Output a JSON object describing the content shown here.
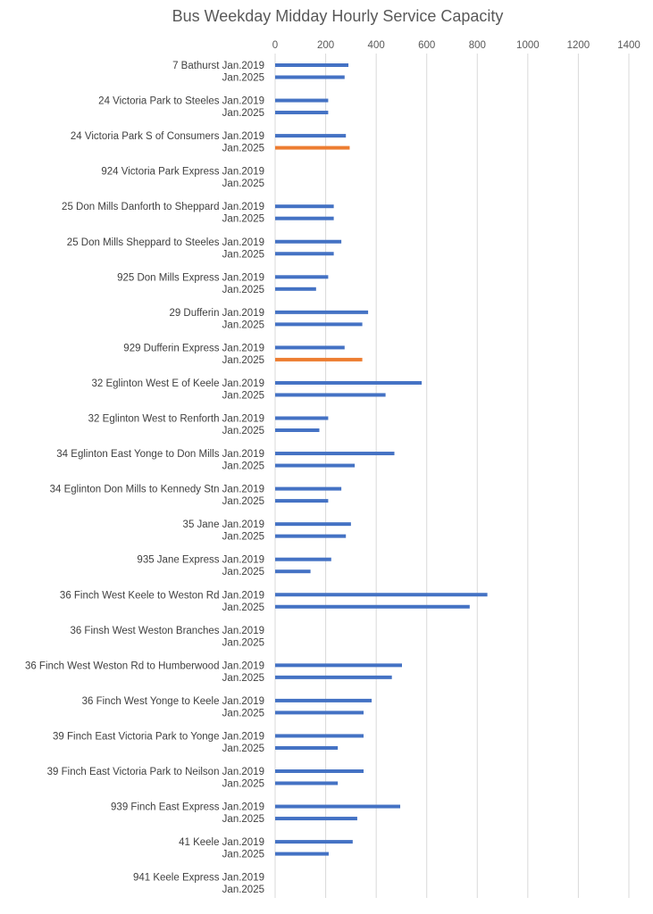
{
  "chart_data": {
    "type": "bar",
    "orientation": "horizontal",
    "title": "Bus Weekday Midday Hourly Service Capacity",
    "xlabel": "",
    "ylabel": "",
    "xlim": [
      0,
      1400
    ],
    "xticks": [
      0,
      200,
      400,
      600,
      800,
      1000,
      1200,
      1400
    ],
    "grid": "vertical",
    "legend": "none",
    "colors": {
      "default": "#4472C4",
      "highlight": "#ED7D31"
    },
    "routes": [
      {
        "name": "7 Bathurst",
        "bars": [
          {
            "label": "Jan.2019",
            "value": 290
          },
          {
            "label": "Jan.2025",
            "value": 275
          }
        ]
      },
      {
        "name": "24 Victoria Park to Steeles",
        "bars": [
          {
            "label": "Jan.2019",
            "value": 210
          },
          {
            "label": "Jan.2025",
            "value": 210
          }
        ]
      },
      {
        "name": "24 Victoria Park S of Consumers",
        "bars": [
          {
            "label": "Jan.2019",
            "value": 280
          },
          {
            "label": "Jan.2025",
            "value": 295,
            "color": "#ED7D31"
          }
        ]
      },
      {
        "name": "924 Victoria Park Express",
        "bars": [
          {
            "label": "Jan.2019",
            "value": 0
          },
          {
            "label": "Jan.2025",
            "value": 0
          }
        ]
      },
      {
        "name": "25 Don Mills Danforth to Sheppard",
        "bars": [
          {
            "label": "Jan.2019",
            "value": 232
          },
          {
            "label": "Jan.2025",
            "value": 232
          }
        ]
      },
      {
        "name": "25 Don Mills Sheppard to Steeles",
        "bars": [
          {
            "label": "Jan.2019",
            "value": 262
          },
          {
            "label": "Jan.2025",
            "value": 232
          }
        ]
      },
      {
        "name": "925 Don Mills Express",
        "bars": [
          {
            "label": "Jan.2019",
            "value": 210
          },
          {
            "label": "Jan.2025",
            "value": 162
          }
        ]
      },
      {
        "name": "29 Dufferin",
        "bars": [
          {
            "label": "Jan.2019",
            "value": 368
          },
          {
            "label": "Jan.2025",
            "value": 345
          }
        ]
      },
      {
        "name": "929 Dufferin Express",
        "bars": [
          {
            "label": "Jan.2019",
            "value": 275
          },
          {
            "label": "Jan.2025",
            "value": 345,
            "color": "#ED7D31"
          }
        ]
      },
      {
        "name": "32 Eglinton West E of Keele",
        "bars": [
          {
            "label": "Jan.2019",
            "value": 580
          },
          {
            "label": "Jan.2025",
            "value": 437
          }
        ]
      },
      {
        "name": "32 Eglinton West to Renforth",
        "bars": [
          {
            "label": "Jan.2019",
            "value": 210
          },
          {
            "label": "Jan.2025",
            "value": 175
          }
        ]
      },
      {
        "name": "34 Eglinton East Yonge to Don Mills",
        "bars": [
          {
            "label": "Jan.2019",
            "value": 472
          },
          {
            "label": "Jan.2025",
            "value": 315
          }
        ]
      },
      {
        "name": "34 Eglinton Don Mills to Kennedy Stn",
        "bars": [
          {
            "label": "Jan.2019",
            "value": 262
          },
          {
            "label": "Jan.2025",
            "value": 210
          }
        ]
      },
      {
        "name": "35 Jane",
        "bars": [
          {
            "label": "Jan.2019",
            "value": 300
          },
          {
            "label": "Jan.2025",
            "value": 280
          }
        ]
      },
      {
        "name": "935 Jane Express",
        "bars": [
          {
            "label": "Jan.2019",
            "value": 222
          },
          {
            "label": "Jan.2025",
            "value": 140
          }
        ]
      },
      {
        "name": "36 Finch West Keele to Weston Rd",
        "bars": [
          {
            "label": "Jan.2019",
            "value": 840
          },
          {
            "label": "Jan.2025",
            "value": 770
          }
        ]
      },
      {
        "name": "36 Finsh West Weston Branches",
        "bars": [
          {
            "label": "Jan.2019",
            "value": 0
          },
          {
            "label": "Jan.2025",
            "value": 0
          }
        ]
      },
      {
        "name": "36 Finch West Weston Rd to Humberwood",
        "bars": [
          {
            "label": "Jan.2019",
            "value": 502
          },
          {
            "label": "Jan.2025",
            "value": 462
          }
        ]
      },
      {
        "name": "36 Finch West Yonge to Keele",
        "bars": [
          {
            "label": "Jan.2019",
            "value": 382
          },
          {
            "label": "Jan.2025",
            "value": 350
          }
        ]
      },
      {
        "name": "39 Finch East Victoria Park to Yonge",
        "bars": [
          {
            "label": "Jan.2019",
            "value": 350
          },
          {
            "label": "Jan.2025",
            "value": 248
          }
        ]
      },
      {
        "name": "39 Finch East Victoria Park to Neilson",
        "bars": [
          {
            "label": "Jan.2019",
            "value": 350
          },
          {
            "label": "Jan.2025",
            "value": 248
          }
        ]
      },
      {
        "name": "939 Finch East Express",
        "bars": [
          {
            "label": "Jan.2019",
            "value": 495
          },
          {
            "label": "Jan.2025",
            "value": 325
          }
        ]
      },
      {
        "name": "41 Keele",
        "bars": [
          {
            "label": "Jan.2019",
            "value": 307
          },
          {
            "label": "Jan.2025",
            "value": 212
          }
        ]
      },
      {
        "name": "941 Keele Express",
        "bars": [
          {
            "label": "Jan.2019",
            "value": 0
          },
          {
            "label": "Jan.2025",
            "value": 0
          }
        ]
      }
    ]
  }
}
